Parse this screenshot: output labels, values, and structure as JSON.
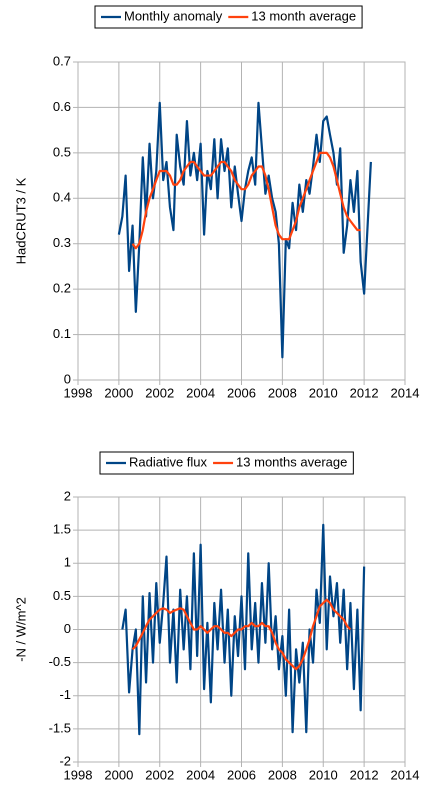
{
  "chart_data": [
    {
      "type": "line",
      "ylabel": "HadCRUT3 / K",
      "x": [
        2000.0,
        2000.17,
        2000.33,
        2000.5,
        2000.67,
        2000.83,
        2001.0,
        2001.17,
        2001.33,
        2001.5,
        2001.67,
        2001.83,
        2002.0,
        2002.17,
        2002.33,
        2002.5,
        2002.67,
        2002.83,
        2003.0,
        2003.17,
        2003.33,
        2003.5,
        2003.67,
        2003.83,
        2004.0,
        2004.17,
        2004.33,
        2004.5,
        2004.67,
        2004.83,
        2005.0,
        2005.17,
        2005.33,
        2005.5,
        2005.67,
        2005.83,
        2006.0,
        2006.17,
        2006.33,
        2006.5,
        2006.67,
        2006.83,
        2007.0,
        2007.17,
        2007.33,
        2007.5,
        2007.67,
        2007.83,
        2008.0,
        2008.17,
        2008.33,
        2008.5,
        2008.67,
        2008.83,
        2009.0,
        2009.17,
        2009.33,
        2009.5,
        2009.67,
        2009.83,
        2010.0,
        2010.17,
        2010.33,
        2010.5,
        2010.67,
        2010.83,
        2011.0,
        2011.17,
        2011.33,
        2011.5,
        2011.67,
        2011.83,
        2012.0,
        2012.33
      ],
      "series": [
        {
          "name": "Monthly anomaly",
          "color": "#004586",
          "values": [
            0.32,
            0.36,
            0.45,
            0.24,
            0.34,
            0.15,
            0.3,
            0.49,
            0.36,
            0.52,
            0.4,
            0.46,
            0.61,
            0.44,
            0.48,
            0.38,
            0.33,
            0.54,
            0.47,
            0.43,
            0.57,
            0.45,
            0.5,
            0.44,
            0.52,
            0.32,
            0.46,
            0.42,
            0.53,
            0.4,
            0.53,
            0.46,
            0.51,
            0.38,
            0.47,
            0.41,
            0.35,
            0.42,
            0.46,
            0.49,
            0.43,
            0.61,
            0.51,
            0.41,
            0.45,
            0.4,
            0.37,
            0.3,
            0.05,
            0.31,
            0.29,
            0.39,
            0.33,
            0.43,
            0.37,
            0.44,
            0.41,
            0.47,
            0.54,
            0.48,
            0.57,
            0.58,
            0.54,
            0.5,
            0.43,
            0.51,
            0.28,
            0.34,
            0.44,
            0.37,
            0.46,
            0.26,
            0.19,
            0.48
          ]
        },
        {
          "name": "13 month average",
          "color": "#ff420e",
          "values": [
            null,
            null,
            null,
            null,
            0.3,
            0.29,
            0.3,
            0.33,
            0.37,
            0.4,
            0.42,
            0.44,
            0.46,
            0.46,
            0.46,
            0.45,
            0.43,
            0.43,
            0.44,
            0.46,
            0.47,
            0.48,
            0.48,
            0.47,
            0.46,
            0.45,
            0.45,
            0.45,
            0.46,
            0.47,
            0.48,
            0.48,
            0.47,
            0.46,
            0.44,
            0.43,
            0.42,
            0.42,
            0.43,
            0.45,
            0.46,
            0.47,
            0.47,
            0.45,
            0.42,
            0.38,
            0.34,
            0.32,
            0.31,
            0.31,
            0.31,
            0.33,
            0.35,
            0.38,
            0.4,
            0.42,
            0.44,
            0.46,
            0.48,
            0.5,
            0.5,
            0.5,
            0.49,
            0.47,
            0.44,
            0.41,
            0.38,
            0.36,
            0.35,
            0.34,
            0.33,
            0.33,
            null,
            null
          ]
        }
      ],
      "xlim": [
        1998,
        2014
      ],
      "xticks": [
        1998,
        2000,
        2002,
        2004,
        2006,
        2008,
        2010,
        2012,
        2014
      ],
      "ylim": [
        0,
        0.7
      ],
      "yticks": [
        0,
        0.1,
        0.2,
        0.3,
        0.4,
        0.5,
        0.6,
        0.7
      ],
      "grid": true
    },
    {
      "type": "line",
      "ylabel": "-N / W/m^2",
      "x": [
        2000.17,
        2000.33,
        2000.5,
        2000.67,
        2000.83,
        2001.0,
        2001.17,
        2001.33,
        2001.5,
        2001.67,
        2001.83,
        2002.0,
        2002.17,
        2002.33,
        2002.5,
        2002.67,
        2002.83,
        2003.0,
        2003.17,
        2003.33,
        2003.5,
        2003.67,
        2003.83,
        2004.0,
        2004.17,
        2004.33,
        2004.5,
        2004.67,
        2004.83,
        2005.0,
        2005.17,
        2005.33,
        2005.5,
        2005.67,
        2005.83,
        2006.0,
        2006.17,
        2006.33,
        2006.5,
        2006.67,
        2006.83,
        2007.0,
        2007.17,
        2007.33,
        2007.5,
        2007.67,
        2007.83,
        2008.0,
        2008.17,
        2008.33,
        2008.5,
        2008.67,
        2008.83,
        2009.0,
        2009.17,
        2009.33,
        2009.5,
        2009.67,
        2009.83,
        2010.0,
        2010.17,
        2010.33,
        2010.5,
        2010.67,
        2010.83,
        2011.0,
        2011.17,
        2011.33,
        2011.5,
        2011.67,
        2011.83,
        2012.0
      ],
      "series": [
        {
          "name": "Radiative flux",
          "color": "#004586",
          "values": [
            0.0,
            0.3,
            -0.95,
            -0.3,
            0.0,
            -1.58,
            0.5,
            -0.8,
            0.55,
            -0.5,
            0.7,
            -0.2,
            0.4,
            1.1,
            -0.5,
            0.3,
            -0.8,
            0.6,
            -0.3,
            0.5,
            -0.6,
            1.15,
            -0.4,
            1.28,
            -0.9,
            0.1,
            -1.1,
            0.4,
            -0.3,
            0.6,
            -0.5,
            0.3,
            -1.0,
            0.2,
            -0.4,
            0.5,
            -0.6,
            1.15,
            -0.3,
            0.4,
            -0.5,
            0.7,
            -0.2,
            1.0,
            -0.3,
            0.2,
            -0.6,
            -0.1,
            -1.0,
            0.3,
            -1.55,
            -0.3,
            -0.8,
            -0.2,
            -1.55,
            0.0,
            -0.5,
            0.6,
            0.1,
            1.58,
            -0.3,
            0.8,
            0.2,
            0.7,
            -0.2,
            0.6,
            -0.6,
            0.4,
            -0.9,
            0.3,
            -1.22,
            0.95
          ]
        },
        {
          "name": "13 months average",
          "color": "#ff420e",
          "values": [
            null,
            null,
            null,
            -0.3,
            -0.25,
            -0.15,
            -0.05,
            0.05,
            0.15,
            0.2,
            0.25,
            0.3,
            0.32,
            0.3,
            0.25,
            0.28,
            0.3,
            0.32,
            0.3,
            0.2,
            0.1,
            0.0,
            0.0,
            0.05,
            0.0,
            -0.05,
            0.0,
            0.05,
            0.05,
            0.0,
            -0.05,
            -0.05,
            -0.1,
            -0.05,
            0.0,
            0.0,
            0.05,
            0.05,
            0.1,
            0.05,
            0.05,
            0.1,
            0.05,
            0.05,
            -0.05,
            -0.2,
            -0.3,
            -0.35,
            -0.45,
            -0.5,
            -0.55,
            -0.6,
            -0.55,
            -0.45,
            -0.3,
            -0.15,
            0.05,
            0.2,
            0.35,
            0.4,
            0.45,
            0.4,
            0.3,
            0.25,
            0.2,
            0.15,
            0.05,
            0.0,
            null,
            null,
            null,
            null
          ]
        }
      ],
      "xlim": [
        1998,
        2014
      ],
      "xticks": [
        1998,
        2000,
        2002,
        2004,
        2006,
        2008,
        2010,
        2012,
        2014
      ],
      "ylim": [
        -2,
        2
      ],
      "yticks": [
        -2,
        -1.5,
        -1,
        -0.5,
        0,
        0.5,
        1,
        1.5,
        2
      ],
      "grid": true
    }
  ]
}
